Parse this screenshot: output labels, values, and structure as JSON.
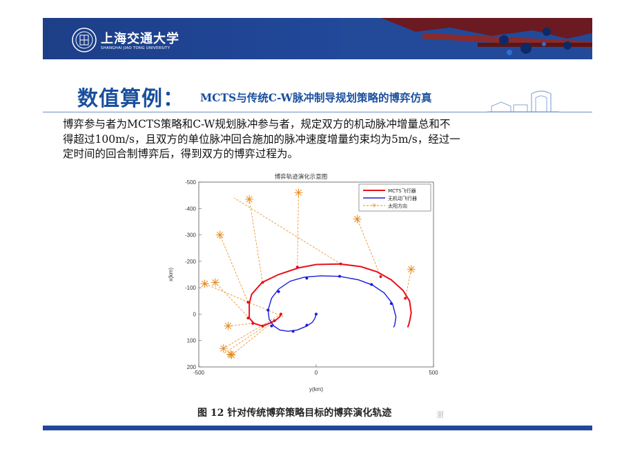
{
  "header": {
    "university_cn": "上海交通大学",
    "university_en": "SHANGHAI JIAO TONG UNIVERSITY",
    "accent_color": "#21489a"
  },
  "slide": {
    "title": "数值算例：",
    "subtitle": "MCTS与传统C-W脉冲制导规划策略的博弈仿真",
    "body_lines": [
      "博弈参与者为MCTS策略和C-W规划脉冲参与者，规定双方的机动脉冲增量总和不",
      "得超过100m/s，且双方的单位脉冲回合施加的脉冲速度增量约束均为5m/s，经过一",
      "定时间的回合制博弈后，得到双方的博弈过程为。"
    ],
    "caption": "图 12  针对传统博弈策略目标的博弈演化轨迹",
    "watermark": "瀏"
  },
  "chart_data": {
    "type": "line",
    "title": "博弈轨迹演化示意图",
    "xlabel": "y(km)",
    "ylabel": "x(km)",
    "xlim": [
      -500,
      500
    ],
    "ylim": [
      -500,
      200
    ],
    "y_reversed": true,
    "xticks": [
      -500,
      0,
      500
    ],
    "yticks": [
      -500,
      -400,
      -300,
      -200,
      -100,
      0,
      100,
      200
    ],
    "grid": false,
    "legend_position": "top-right",
    "series": [
      {
        "name": "MCTS飞行器",
        "color": "#e8101a",
        "x": [
          -150,
          -155,
          -175,
          -200,
          -230,
          -265,
          -285,
          -285,
          -275,
          -230,
          -160,
          -75,
          0,
          100,
          190,
          260,
          320,
          370,
          398,
          405,
          400,
          395,
          390
        ],
        "y": [
          0,
          10,
          25,
          35,
          45,
          35,
          15,
          -40,
          -75,
          -120,
          -150,
          -175,
          -188,
          -190,
          -180,
          -160,
          -130,
          -90,
          -50,
          -5,
          20,
          38,
          50
        ],
        "markers": [
          [
            -150,
            0
          ],
          [
            -178,
            25
          ],
          [
            -228,
            45
          ],
          [
            -270,
            35
          ],
          [
            -290,
            15
          ],
          [
            -290,
            -45
          ],
          [
            -228,
            -120
          ],
          [
            -80,
            -178
          ],
          [
            105,
            -190
          ],
          [
            275,
            -142
          ],
          [
            380,
            -60
          ]
        ]
      },
      {
        "name": "无机动飞行器",
        "color": "#1a1ad6",
        "x": [
          0,
          -5,
          -15,
          -40,
          -80,
          -120,
          -155,
          -180,
          -200,
          -205,
          -190,
          -160,
          -110,
          -50,
          20,
          100,
          180,
          240,
          290,
          325,
          340,
          335,
          330
        ],
        "y": [
          0,
          15,
          30,
          45,
          60,
          65,
          60,
          45,
          20,
          -15,
          -60,
          -95,
          -125,
          -140,
          -145,
          -143,
          -130,
          -110,
          -80,
          -40,
          10,
          40,
          50
        ],
        "markers": [
          [
            0,
            0
          ],
          [
            -40,
            42
          ],
          [
            -98,
            65
          ],
          [
            -190,
            45
          ],
          [
            -205,
            -15
          ],
          [
            -160,
            -85
          ],
          [
            -40,
            -136
          ],
          [
            100,
            -143
          ],
          [
            236,
            -112
          ],
          [
            320,
            -40
          ]
        ]
      },
      {
        "name": "太阳方向",
        "color": "#e8891a",
        "segments": [
          [
            [
              -150,
              0
            ],
            [
              -395,
              130
            ]
          ],
          [
            [
              -178,
              25
            ],
            [
              -360,
              155
            ]
          ],
          [
            [
              -200,
              35
            ],
            [
              -395,
              150
            ]
          ],
          [
            [
              -265,
              35
            ],
            [
              -375,
              45
            ]
          ],
          [
            [
              -285,
              15
            ],
            [
              -430,
              -120
            ]
          ],
          [
            [
              -290,
              -45
            ],
            [
              -410,
              -300
            ]
          ],
          [
            [
              -228,
              -120
            ],
            [
              -285,
              -435
            ]
          ],
          [
            [
              -80,
              -178
            ],
            [
              -75,
              -460
            ]
          ],
          [
            [
              105,
              -190
            ],
            [
              -350,
              -440
            ]
          ],
          [
            [
              275,
              -142
            ],
            [
              175,
              -360
            ]
          ],
          [
            [
              380,
              -60
            ],
            [
              405,
              -170
            ]
          ],
          [
            [
              -140,
              10
            ],
            [
              -475,
              -115
            ]
          ]
        ],
        "star_points": [
          [
            -395,
            130
          ],
          [
            -360,
            155
          ],
          [
            -375,
            45
          ],
          [
            -430,
            -120
          ],
          [
            -410,
            -300
          ],
          [
            -285,
            -435
          ],
          [
            -75,
            -460
          ],
          [
            175,
            -360
          ],
          [
            405,
            -170
          ],
          [
            -475,
            -115
          ],
          [
            -365,
            152
          ]
        ]
      }
    ]
  }
}
